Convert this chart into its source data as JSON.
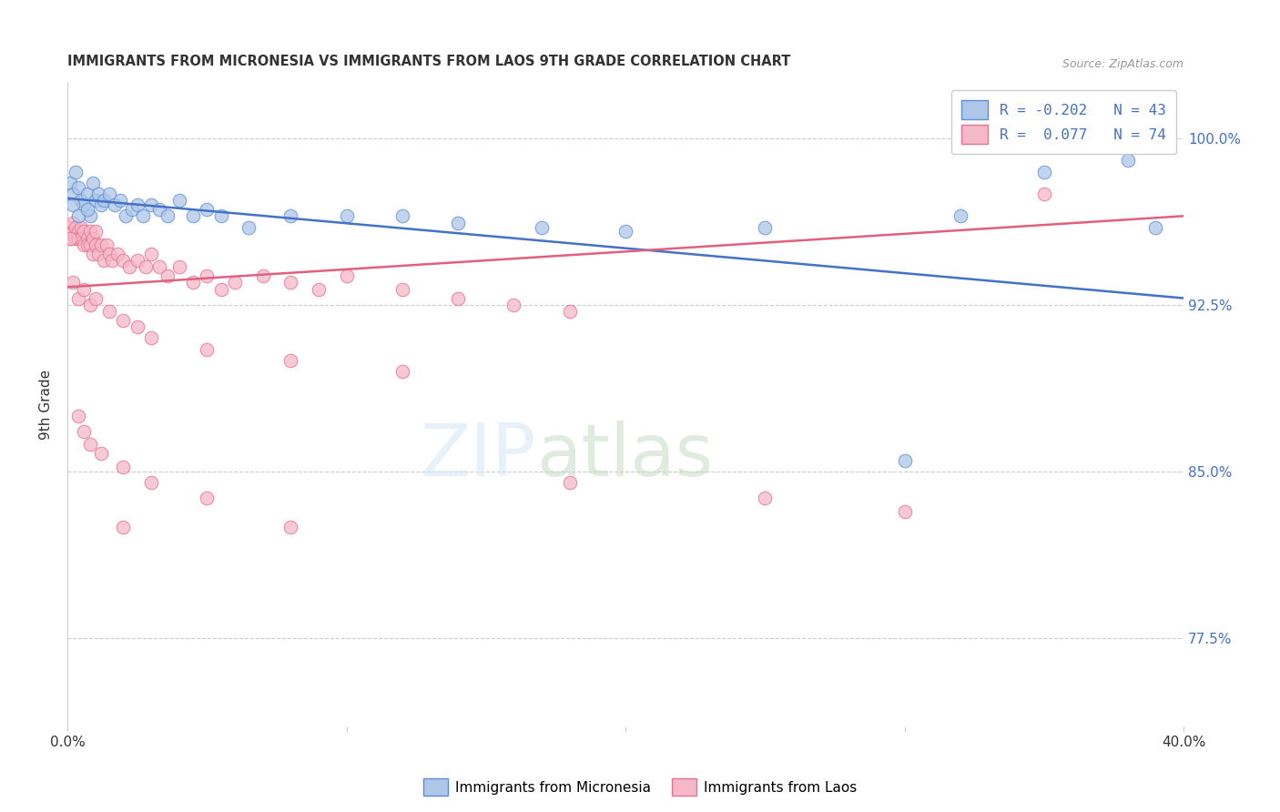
{
  "title": "IMMIGRANTS FROM MICRONESIA VS IMMIGRANTS FROM LAOS 9TH GRADE CORRELATION CHART",
  "source": "Source: ZipAtlas.com",
  "ylabel": "9th Grade",
  "yticks": [
    0.775,
    0.85,
    0.925,
    1.0
  ],
  "ytick_labels": [
    "77.5%",
    "85.0%",
    "92.5%",
    "100.0%"
  ],
  "xlim": [
    0.0,
    0.4
  ],
  "ylim": [
    0.735,
    1.025
  ],
  "legend_R_micronesia": "-0.202",
  "legend_N_micronesia": "43",
  "legend_R_laos": " 0.077",
  "legend_N_laos": "74",
  "color_micronesia": "#aec6e8",
  "color_laos": "#f5b8c8",
  "edge_color_micronesia": "#5b8ed6",
  "edge_color_laos": "#e87090",
  "line_color_micronesia": "#4472c4",
  "line_color_laos": "#e06080",
  "mic_x": [
    0.001,
    0.002,
    0.003,
    0.004,
    0.005,
    0.006,
    0.007,
    0.008,
    0.009,
    0.01,
    0.011,
    0.012,
    0.013,
    0.015,
    0.017,
    0.019,
    0.021,
    0.023,
    0.025,
    0.027,
    0.03,
    0.033,
    0.036,
    0.04,
    0.045,
    0.05,
    0.055,
    0.065,
    0.08,
    0.1,
    0.12,
    0.14,
    0.17,
    0.2,
    0.25,
    0.3,
    0.32,
    0.35,
    0.38,
    0.39,
    0.002,
    0.004,
    0.007
  ],
  "mic_y": [
    0.98,
    0.975,
    0.985,
    0.978,
    0.972,
    0.97,
    0.975,
    0.965,
    0.98,
    0.972,
    0.975,
    0.97,
    0.972,
    0.975,
    0.97,
    0.972,
    0.965,
    0.968,
    0.97,
    0.965,
    0.97,
    0.968,
    0.965,
    0.972,
    0.965,
    0.968,
    0.965,
    0.96,
    0.965,
    0.965,
    0.965,
    0.962,
    0.96,
    0.958,
    0.96,
    0.855,
    0.965,
    0.985,
    0.99,
    0.96,
    0.97,
    0.965,
    0.968
  ],
  "laos_x": [
    0.001,
    0.001,
    0.002,
    0.002,
    0.003,
    0.003,
    0.004,
    0.004,
    0.005,
    0.005,
    0.006,
    0.006,
    0.007,
    0.007,
    0.008,
    0.008,
    0.009,
    0.009,
    0.01,
    0.01,
    0.011,
    0.012,
    0.013,
    0.014,
    0.015,
    0.016,
    0.018,
    0.02,
    0.022,
    0.025,
    0.028,
    0.03,
    0.033,
    0.036,
    0.04,
    0.045,
    0.05,
    0.055,
    0.06,
    0.07,
    0.08,
    0.09,
    0.1,
    0.12,
    0.14,
    0.16,
    0.18,
    0.002,
    0.004,
    0.006,
    0.008,
    0.01,
    0.015,
    0.02,
    0.025,
    0.03,
    0.05,
    0.08,
    0.12,
    0.004,
    0.006,
    0.008,
    0.012,
    0.02,
    0.03,
    0.05,
    0.08,
    0.18,
    0.25,
    0.3,
    0.02,
    0.35,
    0.001,
    0.38
  ],
  "laos_y": [
    0.96,
    0.955,
    0.958,
    0.962,
    0.96,
    0.955,
    0.958,
    0.955,
    0.96,
    0.955,
    0.952,
    0.958,
    0.955,
    0.952,
    0.958,
    0.952,
    0.948,
    0.955,
    0.958,
    0.952,
    0.948,
    0.952,
    0.945,
    0.952,
    0.948,
    0.945,
    0.948,
    0.945,
    0.942,
    0.945,
    0.942,
    0.948,
    0.942,
    0.938,
    0.942,
    0.935,
    0.938,
    0.932,
    0.935,
    0.938,
    0.935,
    0.932,
    0.938,
    0.932,
    0.928,
    0.925,
    0.922,
    0.935,
    0.928,
    0.932,
    0.925,
    0.928,
    0.922,
    0.918,
    0.915,
    0.91,
    0.905,
    0.9,
    0.895,
    0.875,
    0.868,
    0.862,
    0.858,
    0.852,
    0.845,
    0.838,
    0.825,
    0.845,
    0.838,
    0.832,
    0.825,
    0.975,
    0.955,
    1.0
  ]
}
